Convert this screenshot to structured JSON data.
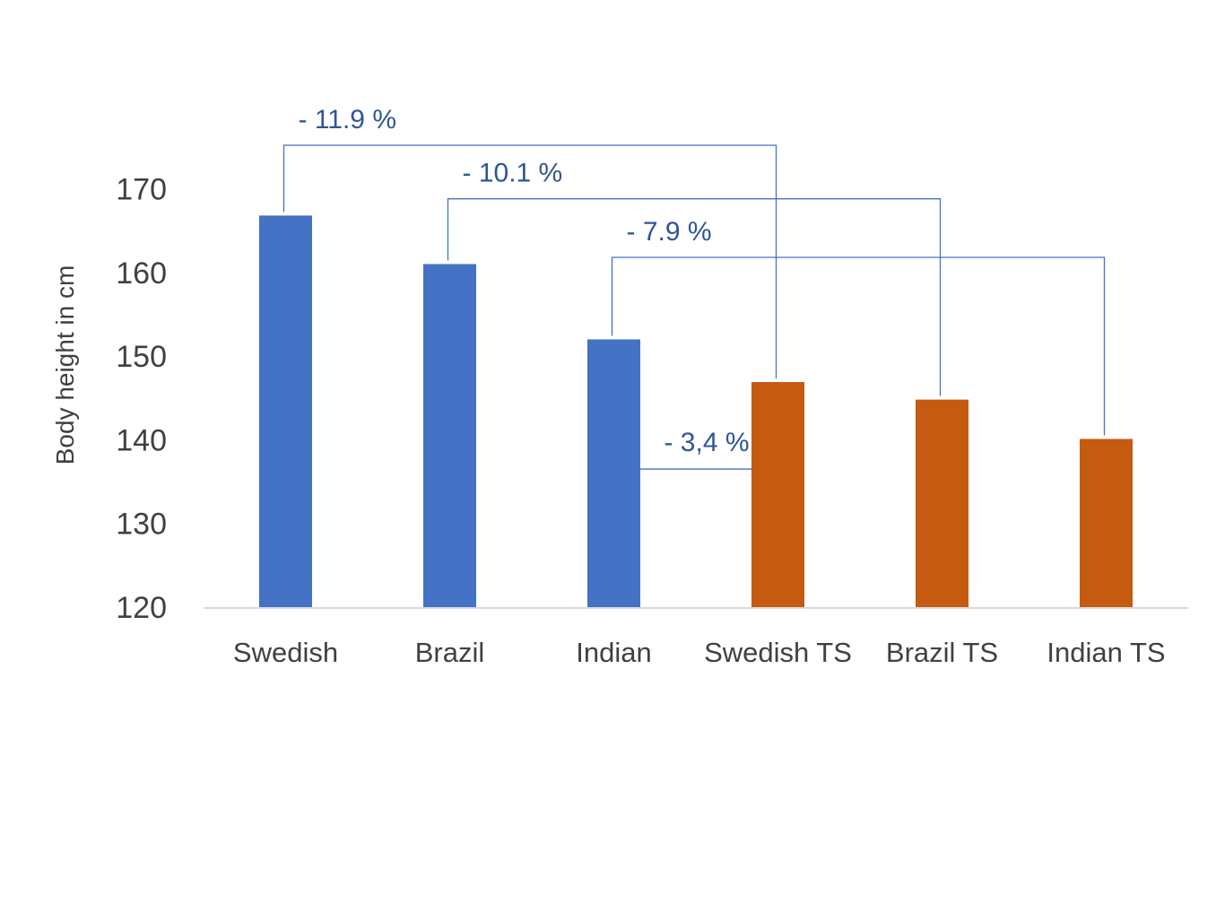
{
  "chart_data": {
    "type": "bar",
    "title": "",
    "xlabel": "",
    "ylabel": "Body height in cm",
    "ylim": [
      120,
      170
    ],
    "yticks": [
      120,
      130,
      140,
      150,
      160,
      170
    ],
    "grid": false,
    "categories": [
      "Swedish",
      "Brazil",
      "Indian",
      "Swedish TS",
      "Brazil TS",
      "Indian TS"
    ],
    "values": [
      166.8,
      161,
      152,
      146.9,
      144.8,
      140.1
    ],
    "bar_colors": [
      "#4472C4",
      "#4472C4",
      "#4472C4",
      "#C55A11",
      "#C55A11",
      "#C55A11"
    ],
    "annotation_color": "#2F5597",
    "bracket_color": "#4472C4",
    "annotations": [
      {
        "label": "- 11.9 %",
        "from": "Swedish",
        "to": "Swedish TS",
        "level": 175.2
      },
      {
        "label": "- 10.1 %",
        "from": "Brazil",
        "to": "Brazil TS",
        "level": 168.8
      },
      {
        "label": "- 7.9 %",
        "from": "Indian",
        "to": "Indian TS",
        "level": 161.8
      },
      {
        "label": "- 3,4 %",
        "from": "Indian",
        "to": "Swedish TS",
        "level": 136.5,
        "type": "side"
      }
    ]
  }
}
